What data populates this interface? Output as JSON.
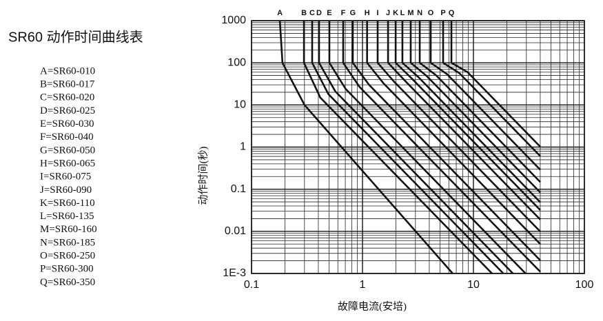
{
  "chart_data": {
    "type": "line",
    "title": "SR60 动作时间曲线表",
    "x_label": "故障电流(安培)",
    "y_label": "动作时间(秒)",
    "ratings": [
      "A=SR60-010",
      "B=SR60-017",
      "C=SR60-020",
      "D=SR60-025",
      "E=SR60-030",
      "F=SR60-040",
      "G=SR60-050",
      "H=SR60-065",
      "I=SR60-075",
      "J=SR60-090",
      "K=SR60-110",
      "L=SR60-135",
      "M=SR60-160",
      "N=SR60-185",
      "O=SR60-250",
      "P=SR60-300",
      "Q=SR60-350"
    ],
    "xlim": [
      0.1,
      100
    ],
    "xticks": [
      0.1,
      1,
      10,
      100
    ],
    "ylim": [
      0.001,
      1000
    ],
    "yticks": [
      {
        "value": 0.001,
        "label": "1E-3"
      },
      0.01,
      0.1,
      1,
      10,
      100,
      1000
    ],
    "log_x": true,
    "log_y": true,
    "grid": true,
    "minor_grid": true,
    "color": "#111111",
    "series": [
      {
        "name": "A",
        "x": [
          0.18,
          0.19,
          0.3,
          6.5
        ],
        "values": [
          1000,
          100,
          10,
          0.001
        ]
      },
      {
        "name": "B",
        "x": [
          0.297,
          0.297,
          0.416,
          14.7
        ],
        "values": [
          1000,
          100,
          15,
          0.001
        ]
      },
      {
        "name": "C",
        "x": [
          0.352,
          0.352,
          0.493,
          18.6
        ],
        "values": [
          1000,
          100,
          18,
          0.001
        ]
      },
      {
        "name": "D",
        "x": [
          0.406,
          0.406,
          0.569,
          22.7
        ],
        "values": [
          1000,
          100,
          21,
          0.001
        ]
      },
      {
        "name": "E",
        "x": [
          0.503,
          0.503,
          0.705,
          29.5
        ],
        "values": [
          1000,
          100,
          24,
          0.001
        ]
      },
      {
        "name": "F",
        "x": [
          0.67,
          0.67,
          0.938,
          40
        ],
        "values": [
          1000,
          100,
          27,
          0.0011
        ]
      },
      {
        "name": "G",
        "x": [
          0.818,
          0.818,
          1.146,
          40
        ],
        "values": [
          1000,
          100,
          30,
          0.00205
        ]
      },
      {
        "name": "H",
        "x": [
          1.1,
          1.1,
          1.54,
          40
        ],
        "values": [
          1000,
          100,
          33,
          0.005
        ]
      },
      {
        "name": "I",
        "x": [
          1.37,
          1.37,
          1.92,
          40
        ],
        "values": [
          1000,
          100,
          36,
          0.0099
        ]
      },
      {
        "name": "J",
        "x": [
          1.7,
          1.7,
          2.38,
          40
        ],
        "values": [
          1000,
          100,
          39,
          0.019
        ]
      },
      {
        "name": "K",
        "x": [
          1.99,
          1.99,
          2.79,
          40
        ],
        "values": [
          1000,
          100,
          42,
          0.032
        ]
      },
      {
        "name": "L",
        "x": [
          2.29,
          2.29,
          3.21,
          40
        ],
        "values": [
          1000,
          100,
          45,
          0.049
        ]
      },
      {
        "name": "M",
        "x": [
          2.72,
          2.72,
          3.81,
          40
        ],
        "values": [
          1000,
          100,
          48,
          0.084
        ]
      },
      {
        "name": "N",
        "x": [
          3.28,
          3.28,
          4.59,
          40
        ],
        "values": [
          1000,
          100,
          51,
          0.148
        ]
      },
      {
        "name": "O",
        "x": [
          4.12,
          4.12,
          5.77,
          40
        ],
        "values": [
          1000,
          100,
          54,
          0.29
        ]
      },
      {
        "name": "P",
        "x": [
          5.33,
          5.33,
          7.46,
          40
        ],
        "values": [
          1000,
          100,
          57,
          0.61
        ]
      },
      {
        "name": "Q",
        "x": [
          6.33,
          6.33,
          8.85,
          40
        ],
        "values": [
          1000,
          100,
          60,
          1.02
        ]
      }
    ]
  }
}
